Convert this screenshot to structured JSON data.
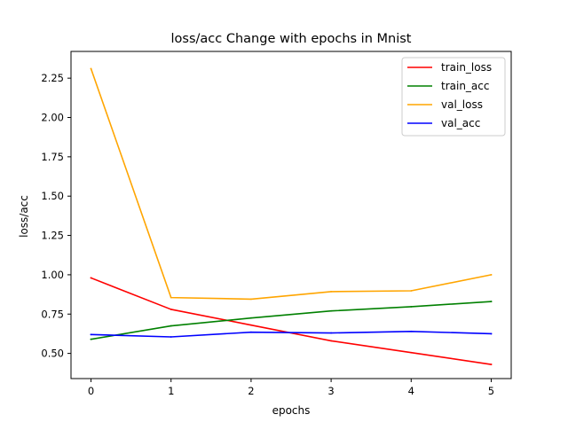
{
  "chart_data": {
    "type": "line",
    "title": "loss/acc Change with epochs in Mnist",
    "xlabel": "epochs",
    "ylabel": "loss/acc",
    "x": [
      0,
      1,
      2,
      3,
      4,
      5
    ],
    "xticks": [
      "0",
      "1",
      "2",
      "3",
      "4",
      "5"
    ],
    "yticks": [
      "0.50",
      "0.75",
      "1.00",
      "1.25",
      "1.50",
      "1.75",
      "2.00",
      "2.25"
    ],
    "ylim": [
      0.34,
      2.42
    ],
    "xlim": [
      -0.25,
      5.25
    ],
    "grid": false,
    "legend_position": "top-right",
    "series": [
      {
        "name": "train_loss",
        "color": "#ff0000",
        "values": [
          0.98,
          0.78,
          0.68,
          0.58,
          0.505,
          0.43
        ]
      },
      {
        "name": "train_acc",
        "color": "#008000",
        "values": [
          0.59,
          0.675,
          0.725,
          0.77,
          0.797,
          0.83
        ]
      },
      {
        "name": "val_loss",
        "color": "#ffa500",
        "values": [
          2.31,
          0.855,
          0.845,
          0.893,
          0.898,
          1.0
        ]
      },
      {
        "name": "val_acc",
        "color": "#0000ff",
        "values": [
          0.62,
          0.605,
          0.635,
          0.63,
          0.64,
          0.625
        ]
      }
    ]
  }
}
